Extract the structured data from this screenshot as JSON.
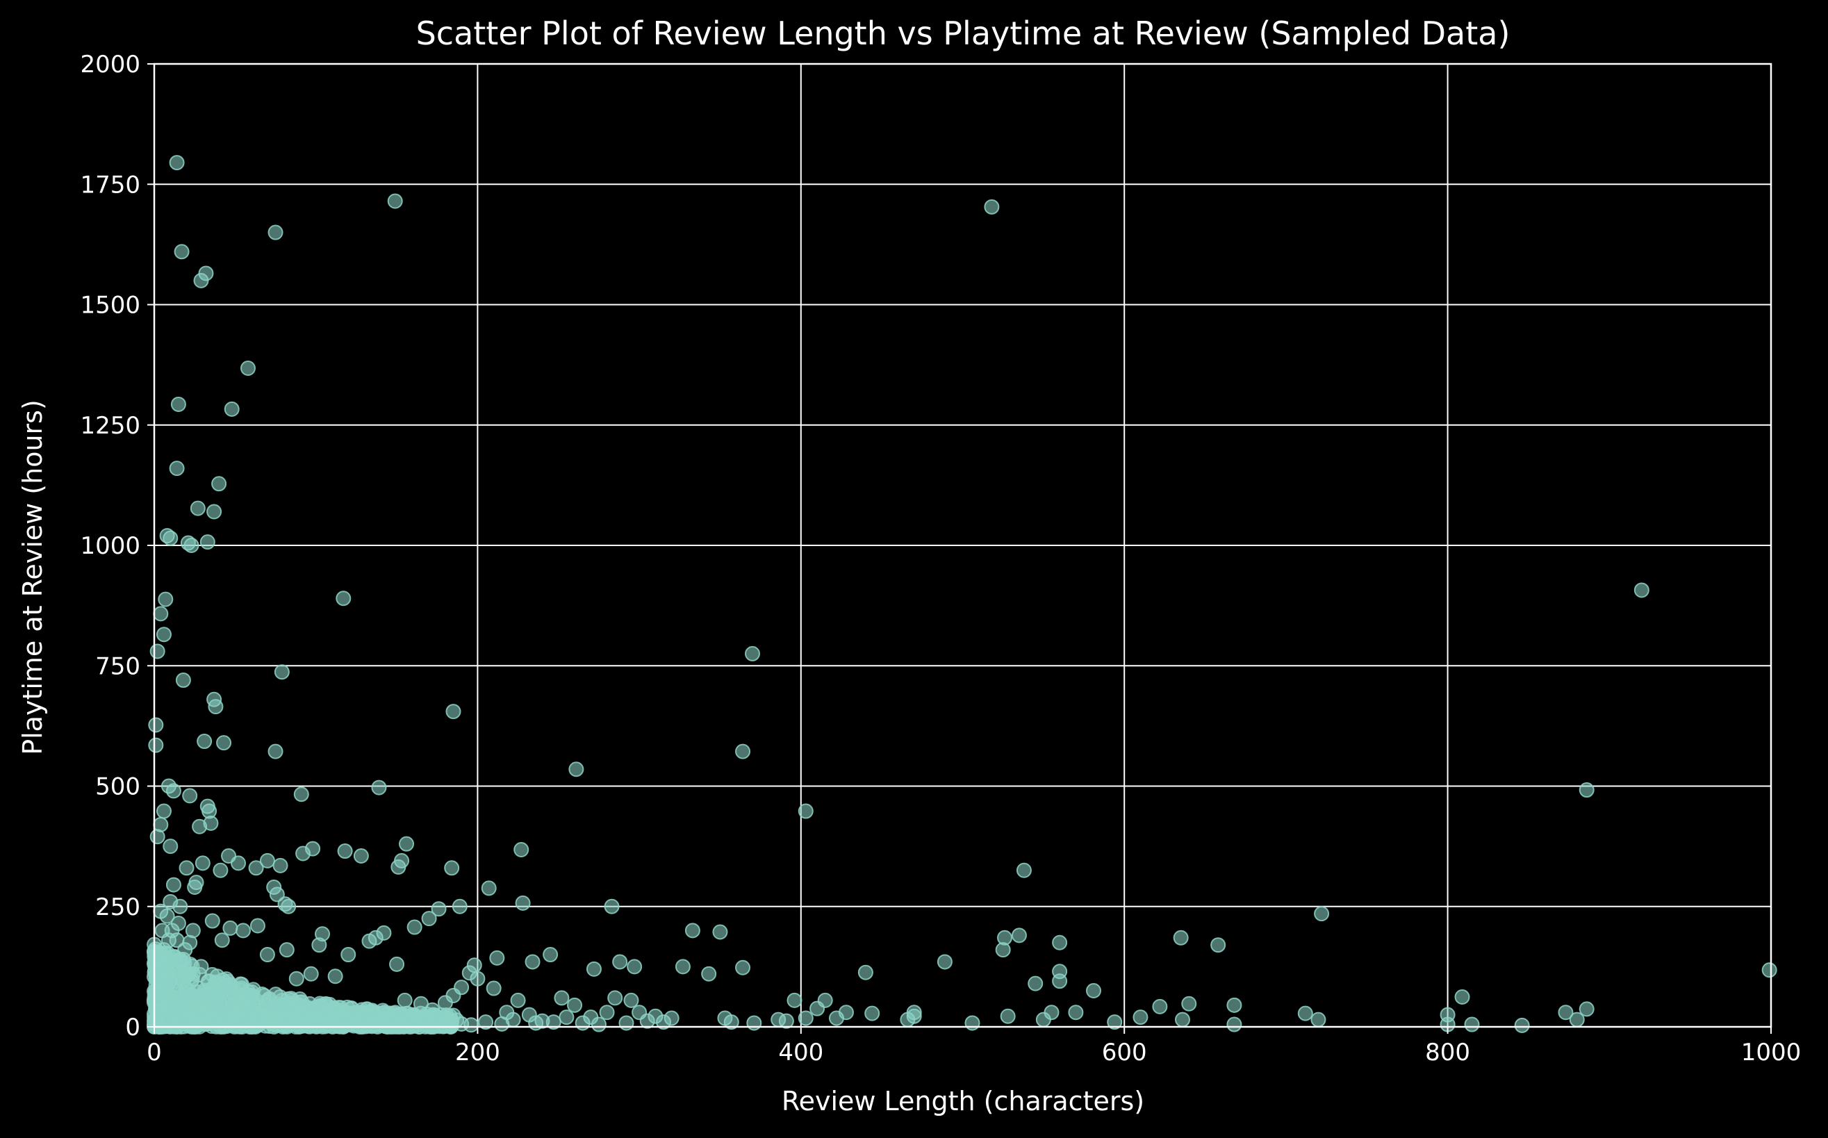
{
  "chart_data": {
    "type": "scatter",
    "title": "Scatter Plot of Review Length vs Playtime at Review (Sampled Data)",
    "xlabel": "Review Length (characters)",
    "ylabel": "Playtime at Review (hours)",
    "xlim": [
      0,
      1000
    ],
    "ylim": [
      0,
      2000
    ],
    "xticks": [
      "0",
      "200",
      "400",
      "600",
      "800",
      "1000"
    ],
    "yticks": [
      "0",
      "250",
      "500",
      "750",
      "1000",
      "1250",
      "1500",
      "1750",
      "2000"
    ],
    "grid": true,
    "colors": {
      "background": "#000000",
      "point": "#8dd3c7",
      "grid": "#ffffff",
      "text": "#ffffff"
    },
    "points": [
      [
        14,
        1795
      ],
      [
        17,
        1610
      ],
      [
        75,
        1650
      ],
      [
        149,
        1715
      ],
      [
        32,
        1565
      ],
      [
        29,
        1550
      ],
      [
        58,
        1368
      ],
      [
        15,
        1293
      ],
      [
        48,
        1283
      ],
      [
        14,
        1160
      ],
      [
        40,
        1128
      ],
      [
        27,
        1077
      ],
      [
        37,
        1070
      ],
      [
        33,
        1007
      ],
      [
        8,
        1020
      ],
      [
        10,
        1015
      ],
      [
        21,
        1005
      ],
      [
        23,
        1000
      ],
      [
        7,
        888
      ],
      [
        117,
        890
      ],
      [
        4,
        858
      ],
      [
        6,
        815
      ],
      [
        2,
        780
      ],
      [
        18,
        720
      ],
      [
        79,
        737
      ],
      [
        37,
        680
      ],
      [
        38,
        665
      ],
      [
        31,
        593
      ],
      [
        43,
        590
      ],
      [
        75,
        572
      ],
      [
        1,
        627
      ],
      [
        1,
        585
      ],
      [
        185,
        655
      ],
      [
        9,
        500
      ],
      [
        12,
        490
      ],
      [
        22,
        480
      ],
      [
        91,
        483
      ],
      [
        139,
        497
      ],
      [
        33,
        458
      ],
      [
        34,
        448
      ],
      [
        35,
        423
      ],
      [
        28,
        416
      ],
      [
        2,
        395
      ],
      [
        4,
        420
      ],
      [
        6,
        448
      ],
      [
        10,
        375
      ],
      [
        12,
        295
      ],
      [
        16,
        250
      ],
      [
        20,
        330
      ],
      [
        25,
        290
      ],
      [
        30,
        340
      ],
      [
        41,
        325
      ],
      [
        46,
        355
      ],
      [
        52,
        340
      ],
      [
        63,
        330
      ],
      [
        70,
        345
      ],
      [
        74,
        290
      ],
      [
        76,
        275
      ],
      [
        78,
        335
      ],
      [
        81,
        255
      ],
      [
        83,
        250
      ],
      [
        92,
        360
      ],
      [
        98,
        370
      ],
      [
        118,
        365
      ],
      [
        128,
        355
      ],
      [
        137,
        185
      ],
      [
        151,
        332
      ],
      [
        153,
        345
      ],
      [
        156,
        380
      ],
      [
        161,
        207
      ],
      [
        170,
        225
      ],
      [
        176,
        245
      ],
      [
        184,
        330
      ],
      [
        189,
        250
      ],
      [
        207,
        288
      ],
      [
        227,
        368
      ],
      [
        228,
        257
      ],
      [
        212,
        143
      ],
      [
        234,
        135
      ],
      [
        245,
        150
      ],
      [
        261,
        535
      ],
      [
        283,
        250
      ],
      [
        364,
        572
      ],
      [
        370,
        775
      ],
      [
        403,
        448
      ],
      [
        333,
        200
      ],
      [
        350,
        197
      ],
      [
        364,
        123
      ],
      [
        327,
        125
      ],
      [
        343,
        110
      ],
      [
        297,
        125
      ],
      [
        288,
        135
      ],
      [
        272,
        120
      ],
      [
        518,
        1703
      ],
      [
        538,
        325
      ],
      [
        489,
        135
      ],
      [
        526,
        185
      ],
      [
        525,
        160
      ],
      [
        535,
        190
      ],
      [
        560,
        175
      ],
      [
        545,
        90
      ],
      [
        560,
        115
      ],
      [
        560,
        95
      ],
      [
        581,
        75
      ],
      [
        635,
        185
      ],
      [
        658,
        170
      ],
      [
        640,
        48
      ],
      [
        668,
        45
      ],
      [
        555,
        30
      ],
      [
        570,
        30
      ],
      [
        622,
        42
      ],
      [
        722,
        235
      ],
      [
        712,
        28
      ],
      [
        920,
        907
      ],
      [
        886,
        492
      ],
      [
        999,
        118
      ],
      [
        809,
        62
      ],
      [
        800,
        25
      ],
      [
        873,
        30
      ],
      [
        886,
        37
      ],
      [
        880,
        15
      ],
      [
        815,
        5
      ],
      [
        846,
        3
      ],
      [
        800,
        5
      ],
      [
        720,
        15
      ],
      [
        668,
        5
      ],
      [
        636,
        15
      ],
      [
        610,
        20
      ],
      [
        594,
        10
      ],
      [
        550,
        15
      ],
      [
        528,
        22
      ],
      [
        506,
        8
      ],
      [
        470,
        30
      ],
      [
        470,
        22
      ],
      [
        466,
        15
      ],
      [
        444,
        28
      ],
      [
        440,
        113
      ],
      [
        428,
        30
      ],
      [
        422,
        18
      ],
      [
        415,
        55
      ],
      [
        410,
        38
      ],
      [
        403,
        18
      ],
      [
        396,
        55
      ],
      [
        391,
        12
      ],
      [
        386,
        15
      ],
      [
        371,
        8
      ],
      [
        357,
        10
      ],
      [
        353,
        18
      ],
      [
        320,
        18
      ],
      [
        310,
        22
      ],
      [
        300,
        30
      ],
      [
        295,
        55
      ],
      [
        285,
        60
      ],
      [
        280,
        30
      ],
      [
        270,
        20
      ],
      [
        260,
        45
      ],
      [
        252,
        60
      ],
      [
        240,
        12
      ],
      [
        232,
        25
      ],
      [
        225,
        55
      ],
      [
        218,
        30
      ],
      [
        210,
        80
      ],
      [
        200,
        100
      ],
      [
        198,
        128
      ],
      [
        195,
        112
      ],
      [
        190,
        82
      ],
      [
        185,
        65
      ],
      [
        180,
        50
      ],
      [
        172,
        35
      ],
      [
        165,
        48
      ],
      [
        155,
        55
      ],
      [
        150,
        130
      ],
      [
        142,
        195
      ],
      [
        133,
        178
      ],
      [
        120,
        150
      ],
      [
        112,
        105
      ],
      [
        104,
        193
      ],
      [
        102,
        170
      ],
      [
        97,
        110
      ],
      [
        88,
        100
      ],
      [
        82,
        160
      ],
      [
        70,
        150
      ],
      [
        64,
        210
      ],
      [
        55,
        200
      ],
      [
        47,
        205
      ],
      [
        42,
        180
      ],
      [
        36,
        220
      ],
      [
        26,
        300
      ],
      [
        24,
        200
      ],
      [
        22,
        175
      ],
      [
        19,
        160
      ],
      [
        15,
        215
      ],
      [
        11,
        200
      ],
      [
        9,
        180
      ],
      [
        6,
        160
      ],
      [
        3,
        140
      ],
      [
        2,
        120
      ],
      [
        1,
        100
      ],
      [
        5,
        90
      ],
      [
        8,
        75
      ],
      [
        12,
        60
      ],
      [
        17,
        50
      ],
      [
        21,
        40
      ],
      [
        26,
        30
      ],
      [
        31,
        20
      ],
      [
        36,
        10
      ],
      [
        41,
        5
      ],
      [
        46,
        15
      ],
      [
        51,
        25
      ],
      [
        56,
        35
      ],
      [
        61,
        45
      ],
      [
        66,
        20
      ],
      [
        71,
        10
      ],
      [
        76,
        5
      ],
      [
        81,
        15
      ],
      [
        86,
        30
      ],
      [
        91,
        20
      ],
      [
        96,
        10
      ],
      [
        101,
        5
      ],
      [
        106,
        20
      ],
      [
        111,
        30
      ],
      [
        116,
        15
      ],
      [
        121,
        8
      ],
      [
        126,
        12
      ],
      [
        131,
        20
      ],
      [
        136,
        5
      ],
      [
        141,
        10
      ],
      [
        146,
        15
      ],
      [
        152,
        25
      ],
      [
        158,
        10
      ],
      [
        163,
        5
      ],
      [
        168,
        18
      ],
      [
        174,
        8
      ],
      [
        179,
        3
      ],
      [
        184,
        12
      ],
      [
        190,
        6
      ],
      [
        196,
        4
      ],
      [
        205,
        10
      ],
      [
        215,
        6
      ],
      [
        222,
        15
      ],
      [
        236,
        8
      ],
      [
        247,
        10
      ],
      [
        255,
        20
      ],
      [
        265,
        8
      ],
      [
        275,
        5
      ],
      [
        292,
        8
      ],
      [
        305,
        12
      ],
      [
        315,
        10
      ],
      [
        7,
        130
      ],
      [
        13,
        120
      ],
      [
        18,
        140
      ],
      [
        24,
        110
      ],
      [
        29,
        125
      ],
      [
        34,
        95
      ],
      [
        39,
        105
      ],
      [
        44,
        85
      ],
      [
        49,
        70
      ],
      [
        54,
        80
      ],
      [
        59,
        60
      ],
      [
        63,
        55
      ],
      [
        68,
        65
      ],
      [
        73,
        40
      ],
      [
        79,
        45
      ],
      [
        84,
        38
      ],
      [
        89,
        42
      ],
      [
        94,
        28
      ],
      [
        99,
        35
      ],
      [
        103,
        30
      ],
      [
        108,
        25
      ],
      [
        113,
        22
      ],
      [
        118,
        18
      ],
      [
        123,
        28
      ],
      [
        129,
        18
      ],
      [
        134,
        22
      ],
      [
        139,
        14
      ],
      [
        144,
        18
      ],
      [
        149,
        12
      ],
      [
        154,
        8
      ],
      [
        159,
        15
      ],
      [
        164,
        10
      ],
      [
        169,
        12
      ],
      [
        175,
        20
      ],
      [
        181,
        8
      ],
      [
        187,
        14
      ],
      [
        4,
        240
      ],
      [
        5,
        200
      ],
      [
        8,
        230
      ],
      [
        10,
        260
      ],
      [
        14,
        180
      ],
      [
        16,
        140
      ],
      [
        19,
        110
      ],
      [
        23,
        95
      ],
      [
        27,
        80
      ],
      [
        30,
        65
      ],
      [
        33,
        50
      ],
      [
        37,
        40
      ],
      [
        3,
        60
      ],
      [
        2,
        30
      ],
      [
        6,
        20
      ],
      [
        9,
        10
      ],
      [
        13,
        5
      ],
      [
        18,
        8
      ],
      [
        22,
        12
      ],
      [
        27,
        3
      ],
      [
        32,
        6
      ],
      [
        37,
        18
      ],
      [
        42,
        28
      ],
      [
        47,
        32
      ],
      [
        52,
        12
      ],
      [
        57,
        8
      ],
      [
        62,
        4
      ],
      [
        67,
        12
      ],
      [
        72,
        22
      ],
      [
        77,
        16
      ],
      [
        82,
        9
      ],
      [
        87,
        5
      ]
    ]
  }
}
